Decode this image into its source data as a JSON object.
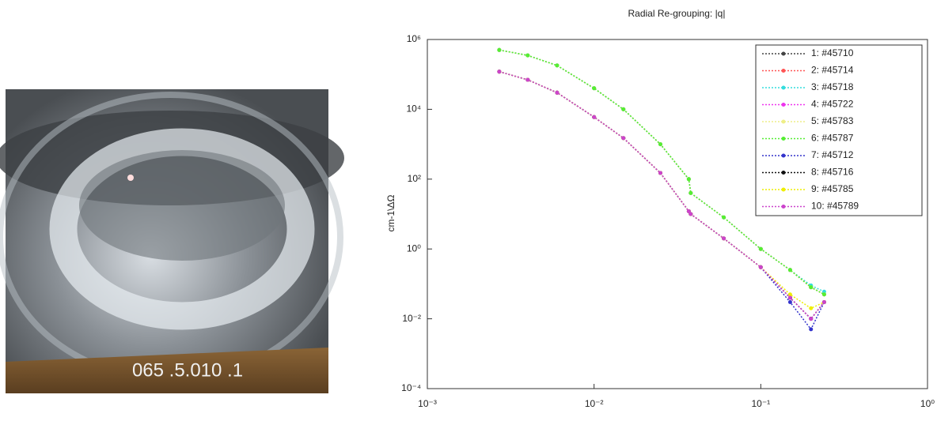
{
  "image": {
    "overlay_text": "065 .5.010 .1"
  },
  "chart_data": {
    "type": "line",
    "title": "Radial Re-grouping: |q|",
    "y_label": "cm-1\\ΔΩ",
    "xscale": "log",
    "yscale": "log",
    "xlim": [
      0.001,
      1
    ],
    "ylim": [
      0.0001,
      1000000
    ],
    "xticks": [
      {
        "value": 0.001,
        "label": "10⁻³"
      },
      {
        "value": 0.01,
        "label": "10⁻²"
      },
      {
        "value": 0.1,
        "label": "10⁻¹"
      },
      {
        "value": 1,
        "label": "10⁰"
      }
    ],
    "yticks": [
      {
        "value": 0.0001,
        "label": "10⁻⁴"
      },
      {
        "value": 0.01,
        "label": "10⁻²"
      },
      {
        "value": 1,
        "label": "10⁰"
      },
      {
        "value": 100,
        "label": "10²"
      },
      {
        "value": 10000,
        "label": "10⁴"
      },
      {
        "value": 1000000,
        "label": "10⁶"
      }
    ],
    "legend": "upper right",
    "x": [
      0.0027,
      0.004,
      0.006,
      0.01,
      0.015,
      0.025,
      0.037,
      0.038,
      0.06,
      0.1,
      0.15,
      0.2,
      0.24
    ],
    "series": [
      {
        "name": "1: #45710",
        "color": "#444444",
        "values": [
          500000,
          350000,
          180000,
          40000,
          10000,
          1000,
          100,
          40,
          8,
          1,
          0.25,
          0.08,
          0.05
        ]
      },
      {
        "name": "2: #45714",
        "color": "#ff5555",
        "values": [
          500000,
          350000,
          180000,
          40000,
          10000,
          1000,
          100,
          40,
          8,
          1,
          0.25,
          0.08,
          0.05
        ]
      },
      {
        "name": "3: #45718",
        "color": "#33dddd",
        "values": [
          500000,
          350000,
          180000,
          40000,
          10000,
          1000,
          100,
          40,
          8,
          1,
          0.25,
          0.09,
          0.06
        ]
      },
      {
        "name": "4: #45722",
        "color": "#ee33ee",
        "values": [
          120000,
          70000,
          30000,
          6000,
          1500,
          150,
          12,
          10,
          2,
          0.3,
          0.04,
          0.01,
          0.03
        ]
      },
      {
        "name": "5: #45783",
        "color": "#eeee88",
        "values": [
          500000,
          350000,
          180000,
          40000,
          10000,
          1000,
          100,
          40,
          8,
          1,
          0.25,
          0.08,
          0.05
        ]
      },
      {
        "name": "6: #45787",
        "color": "#55ee33",
        "values": [
          500000,
          350000,
          180000,
          40000,
          10000,
          1000,
          100,
          40,
          8,
          1,
          0.25,
          0.08,
          0.05
        ]
      },
      {
        "name": "7: #45712",
        "color": "#3333cc",
        "values": [
          120000,
          70000,
          30000,
          6000,
          1500,
          150,
          12,
          10,
          2,
          0.3,
          0.03,
          0.005,
          0.03
        ]
      },
      {
        "name": "8: #45716",
        "color": "#111111",
        "values": [
          120000,
          70000,
          30000,
          6000,
          1500,
          150,
          12,
          10,
          2,
          0.3,
          0.04,
          0.01,
          0.03
        ]
      },
      {
        "name": "9: #45785",
        "color": "#eeee00",
        "values": [
          120000,
          70000,
          30000,
          6000,
          1500,
          150,
          12,
          10,
          2,
          0.3,
          0.05,
          0.02,
          0.03
        ]
      },
      {
        "name": "10: #45789",
        "color": "#cc44cc",
        "values": [
          120000,
          70000,
          30000,
          6000,
          1500,
          150,
          12,
          10,
          2,
          0.3,
          0.04,
          0.01,
          0.03
        ]
      }
    ]
  }
}
